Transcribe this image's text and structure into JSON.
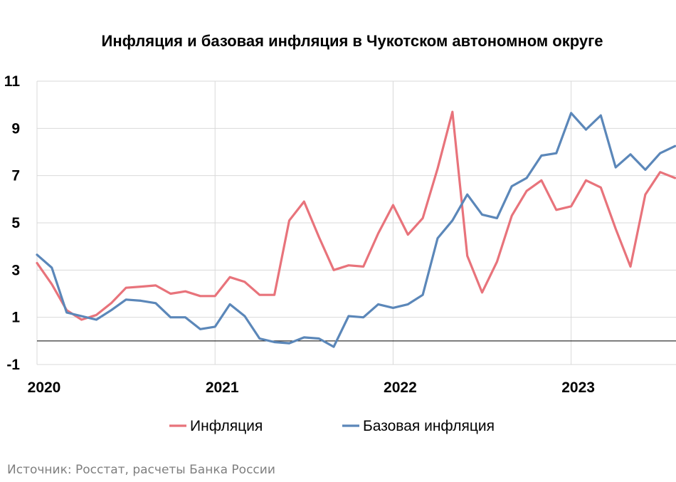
{
  "chart_data": {
    "type": "line",
    "title": "Инфляция и базовая инфляция в Чукотском автономном округе",
    "x_tick_labels": [
      "2020",
      "2021",
      "2022",
      "2023"
    ],
    "y_ticks": [
      11,
      9,
      7,
      5,
      3,
      1,
      -1
    ],
    "ylim": [
      -1,
      11
    ],
    "grid": true,
    "legend_position": "bottom",
    "x": [
      "2020-01",
      "2020-02",
      "2020-03",
      "2020-04",
      "2020-05",
      "2020-06",
      "2020-07",
      "2020-08",
      "2020-09",
      "2020-10",
      "2020-11",
      "2020-12",
      "2021-01",
      "2021-02",
      "2021-03",
      "2021-04",
      "2021-05",
      "2021-06",
      "2021-07",
      "2021-08",
      "2021-09",
      "2021-10",
      "2021-11",
      "2021-12",
      "2022-01",
      "2022-02",
      "2022-03",
      "2022-04",
      "2022-05",
      "2022-06",
      "2022-07",
      "2022-08",
      "2022-09",
      "2022-10",
      "2022-11",
      "2022-12",
      "2023-01",
      "2023-02",
      "2023-03",
      "2023-04",
      "2023-05",
      "2023-06",
      "2023-07",
      "2023-08"
    ],
    "series": [
      {
        "name": "Инфляция",
        "color": "#e8737b",
        "values": [
          3.3,
          2.4,
          1.3,
          0.9,
          1.1,
          1.6,
          2.25,
          2.3,
          2.35,
          2.0,
          2.1,
          1.9,
          1.9,
          2.7,
          2.5,
          1.95,
          1.95,
          5.1,
          5.9,
          4.4,
          3.0,
          3.2,
          3.15,
          4.55,
          5.75,
          4.5,
          5.2,
          7.3,
          9.7,
          3.6,
          2.05,
          3.35,
          5.3,
          6.35,
          6.8,
          5.55,
          5.7,
          6.8,
          6.5,
          4.75,
          3.15,
          6.2,
          7.15,
          6.9
        ]
      },
      {
        "name": "Базовая инфляция",
        "color": "#5b87b9",
        "values": [
          3.65,
          3.1,
          1.2,
          1.05,
          0.9,
          1.3,
          1.75,
          1.7,
          1.6,
          1.0,
          1.0,
          0.5,
          0.6,
          1.55,
          1.05,
          0.1,
          -0.05,
          -0.1,
          0.15,
          0.1,
          -0.25,
          1.05,
          1.0,
          1.55,
          1.4,
          1.55,
          1.95,
          4.35,
          5.1,
          6.2,
          5.35,
          5.2,
          6.55,
          6.9,
          7.85,
          7.95,
          9.65,
          8.95,
          9.55,
          7.35,
          7.9,
          7.25,
          7.95,
          8.25
        ]
      }
    ]
  },
  "source_note": "Источник: Росстат, расчеты Банка России"
}
